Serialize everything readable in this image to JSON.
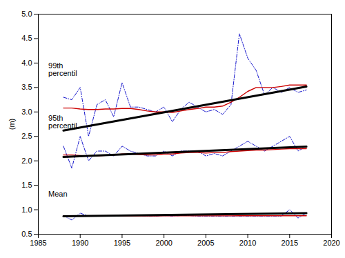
{
  "chart_data": {
    "type": "line",
    "x": [
      1988,
      1989,
      1990,
      1991,
      1992,
      1993,
      1994,
      1995,
      1996,
      1997,
      1998,
      1999,
      2000,
      2001,
      2002,
      2003,
      2004,
      2005,
      2006,
      2007,
      2008,
      2009,
      2010,
      2011,
      2012,
      2013,
      2014,
      2015,
      2016,
      2017
    ],
    "series": [
      {
        "color": "#1515cc",
        "line_style": "dashdot",
        "values": [
          3.3,
          3.25,
          3.5,
          2.5,
          3.15,
          3.25,
          2.9,
          3.6,
          3.1,
          3.1,
          3.05,
          3.0,
          3.1,
          2.8,
          3.05,
          3.2,
          3.1,
          3.0,
          3.05,
          2.95,
          3.15,
          4.6,
          4.1,
          3.85,
          3.35,
          3.5,
          3.4,
          3.5,
          3.4,
          3.45
        ]
      },
      {
        "color": "#cc0000",
        "line_style": "solid",
        "values": [
          3.08,
          3.08,
          3.06,
          3.05,
          3.05,
          3.06,
          3.06,
          3.07,
          3.07,
          3.05,
          3.02,
          3.0,
          3.0,
          2.99,
          3.02,
          3.05,
          3.07,
          3.1,
          3.1,
          3.12,
          3.2,
          3.3,
          3.42,
          3.5,
          3.5,
          3.5,
          3.52,
          3.55,
          3.55,
          3.55
        ]
      },
      {
        "color": "#000000",
        "line_style": "solid",
        "x": [
          1988,
          2017
        ],
        "values": [
          2.62,
          3.52
        ]
      },
      {
        "color": "#1515cc",
        "line_style": "dashdot",
        "values": [
          2.3,
          1.85,
          2.5,
          2.0,
          2.2,
          2.2,
          2.1,
          2.3,
          2.2,
          2.15,
          2.1,
          2.1,
          2.2,
          2.1,
          2.2,
          2.2,
          2.2,
          2.1,
          2.15,
          2.1,
          2.2,
          2.3,
          2.4,
          2.3,
          2.2,
          2.3,
          2.4,
          2.5,
          2.2,
          2.3
        ]
      },
      {
        "color": "#cc0000",
        "line_style": "solid",
        "values": [
          2.12,
          2.12,
          2.11,
          2.1,
          2.1,
          2.11,
          2.12,
          2.14,
          2.14,
          2.13,
          2.12,
          2.12,
          2.14,
          2.14,
          2.16,
          2.17,
          2.17,
          2.16,
          2.17,
          2.17,
          2.19,
          2.2,
          2.21,
          2.22,
          2.22,
          2.23,
          2.24,
          2.25,
          2.25,
          2.25
        ]
      },
      {
        "color": "#000000",
        "line_style": "solid",
        "x": [
          1988,
          2017
        ],
        "values": [
          2.08,
          2.29
        ]
      },
      {
        "color": "#1515cc",
        "line_style": "dashdot",
        "values": [
          0.88,
          0.79,
          0.93,
          0.87,
          0.87,
          0.87,
          0.87,
          0.88,
          0.88,
          0.88,
          0.87,
          0.87,
          0.88,
          0.87,
          0.88,
          0.88,
          0.87,
          0.87,
          0.87,
          0.87,
          0.87,
          0.87,
          0.87,
          0.87,
          0.87,
          0.87,
          0.87,
          1.0,
          0.83,
          0.93
        ]
      },
      {
        "color": "#cc0000",
        "line_style": "solid",
        "values": [
          0.875,
          0.875,
          0.873,
          0.872,
          0.872,
          0.872,
          0.873,
          0.874,
          0.874,
          0.874,
          0.874,
          0.874,
          0.875,
          0.875,
          0.875,
          0.876,
          0.876,
          0.876,
          0.876,
          0.876,
          0.876,
          0.877,
          0.877,
          0.877,
          0.877,
          0.877,
          0.877,
          0.877,
          0.877,
          0.877
        ]
      },
      {
        "color": "#000000",
        "line_style": "solid",
        "x": [
          1988,
          2017
        ],
        "values": [
          0.868,
          0.93
        ]
      }
    ],
    "annotations": [
      {
        "text": "99th\npercentil",
        "x": 1986.2,
        "y": 4.0
      },
      {
        "text": "95th\npercentil",
        "x": 1986.2,
        "y": 2.93
      },
      {
        "text": "Mean",
        "x": 1986.2,
        "y": 1.38
      }
    ],
    "xlim": [
      1985,
      2020
    ],
    "ylim": [
      0.5,
      5.0
    ],
    "xticks": [
      1985,
      1990,
      1995,
      2000,
      2005,
      2010,
      2015,
      2020
    ],
    "yticks": [
      0.5,
      {
        "value": 1.0,
        "label": "1.0"
      },
      1.5,
      {
        "value": 2.0,
        "label": "2.0"
      },
      2.5,
      {
        "value": 3.0,
        "label": "3.0"
      },
      3.5,
      {
        "value": 4.0,
        "label": "4.0"
      },
      4.5,
      {
        "value": 5.0,
        "label": "5.0"
      }
    ],
    "ylabel": "(m)",
    "grid": false
  }
}
